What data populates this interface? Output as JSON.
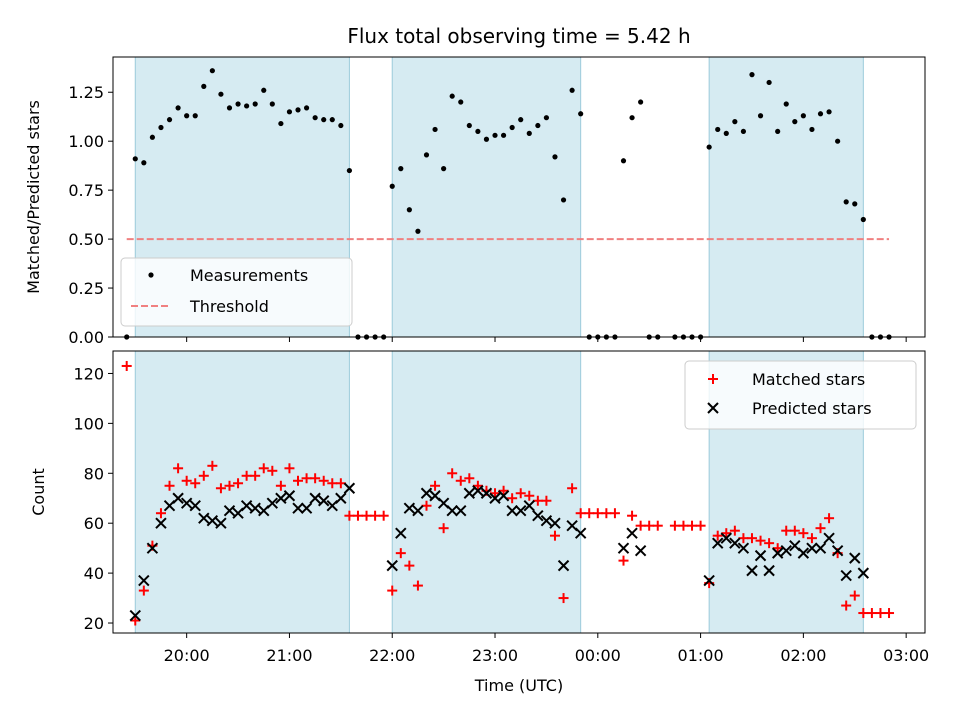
{
  "figure": {
    "title": "Flux total observing time = 5.42 h"
  },
  "chart_data": [
    {
      "type": "scatter",
      "ylabel": "Matched/Predicted stars",
      "xlabel": "",
      "xlim": [
        "19:17",
        "03:11"
      ],
      "ylim": [
        0,
        1.43
      ],
      "yticks": [
        "0.00",
        "0.25",
        "0.50",
        "0.75",
        "1.00",
        "1.25"
      ],
      "shaded_intervals": [
        [
          "19:30",
          "21:35"
        ],
        [
          "22:00",
          "23:50"
        ],
        [
          "01:05",
          "02:35"
        ]
      ],
      "threshold": {
        "value": 0.5,
        "x_range": [
          "19:25",
          "02:50"
        ],
        "color": "#f08080"
      },
      "legend_position": "lower-left",
      "legend": {
        "measurements": "Measurements",
        "threshold": "Threshold"
      },
      "series": [
        {
          "name": "Measurements",
          "color": "#000000",
          "points": [
            [
              "19:25",
              0.0
            ],
            [
              "19:30",
              0.91
            ],
            [
              "19:35",
              0.89
            ],
            [
              "19:40",
              1.02
            ],
            [
              "19:45",
              1.07
            ],
            [
              "19:50",
              1.11
            ],
            [
              "19:55",
              1.17
            ],
            [
              "20:00",
              1.13
            ],
            [
              "20:05",
              1.13
            ],
            [
              "20:10",
              1.28
            ],
            [
              "20:15",
              1.36
            ],
            [
              "20:20",
              1.24
            ],
            [
              "20:25",
              1.17
            ],
            [
              "20:30",
              1.19
            ],
            [
              "20:35",
              1.18
            ],
            [
              "20:40",
              1.19
            ],
            [
              "20:45",
              1.26
            ],
            [
              "20:50",
              1.19
            ],
            [
              "20:55",
              1.09
            ],
            [
              "21:00",
              1.15
            ],
            [
              "21:05",
              1.16
            ],
            [
              "21:10",
              1.17
            ],
            [
              "21:15",
              1.12
            ],
            [
              "21:20",
              1.11
            ],
            [
              "21:25",
              1.11
            ],
            [
              "21:30",
              1.08
            ],
            [
              "21:35",
              0.85
            ],
            [
              "21:40",
              0.0
            ],
            [
              "21:45",
              0.0
            ],
            [
              "21:50",
              0.0
            ],
            [
              "21:55",
              0.0
            ],
            [
              "22:00",
              0.77
            ],
            [
              "22:05",
              0.86
            ],
            [
              "22:10",
              0.65
            ],
            [
              "22:15",
              0.54
            ],
            [
              "22:20",
              0.93
            ],
            [
              "22:25",
              1.06
            ],
            [
              "22:30",
              0.86
            ],
            [
              "22:35",
              1.23
            ],
            [
              "22:40",
              1.2
            ],
            [
              "22:45",
              1.08
            ],
            [
              "22:50",
              1.05
            ],
            [
              "22:55",
              1.01
            ],
            [
              "23:00",
              1.03
            ],
            [
              "23:05",
              1.03
            ],
            [
              "23:10",
              1.07
            ],
            [
              "23:15",
              1.11
            ],
            [
              "23:20",
              1.04
            ],
            [
              "23:25",
              1.08
            ],
            [
              "23:30",
              1.12
            ],
            [
              "23:35",
              0.92
            ],
            [
              "23:40",
              0.7
            ],
            [
              "23:45",
              1.26
            ],
            [
              "23:50",
              1.14
            ],
            [
              "23:55",
              0.0
            ],
            [
              "00:00",
              0.0
            ],
            [
              "00:05",
              0.0
            ],
            [
              "00:10",
              0.0
            ],
            [
              "00:15",
              0.9
            ],
            [
              "00:20",
              1.12
            ],
            [
              "00:25",
              1.2
            ],
            [
              "00:30",
              0.0
            ],
            [
              "00:35",
              0.0
            ],
            [
              "00:45",
              0.0
            ],
            [
              "00:50",
              0.0
            ],
            [
              "00:55",
              0.0
            ],
            [
              "01:00",
              0.0
            ],
            [
              "01:05",
              0.97
            ],
            [
              "01:10",
              1.06
            ],
            [
              "01:15",
              1.04
            ],
            [
              "01:20",
              1.1
            ],
            [
              "01:25",
              1.05
            ],
            [
              "01:30",
              1.34
            ],
            [
              "01:35",
              1.13
            ],
            [
              "01:40",
              1.3
            ],
            [
              "01:45",
              1.05
            ],
            [
              "01:50",
              1.19
            ],
            [
              "01:55",
              1.1
            ],
            [
              "02:00",
              1.13
            ],
            [
              "02:05",
              1.06
            ],
            [
              "02:10",
              1.14
            ],
            [
              "02:15",
              1.15
            ],
            [
              "02:20",
              1.0
            ],
            [
              "02:25",
              0.69
            ],
            [
              "02:30",
              0.68
            ],
            [
              "02:35",
              0.6
            ],
            [
              "02:40",
              0.0
            ],
            [
              "02:45",
              0.0
            ],
            [
              "02:50",
              0.0
            ]
          ]
        }
      ]
    },
    {
      "type": "scatter",
      "ylabel": "Count",
      "xlabel": "Time (UTC)",
      "xlim": [
        "19:17",
        "03:11"
      ],
      "ylim": [
        16,
        129
      ],
      "yticks": [
        "20",
        "40",
        "60",
        "80",
        "100",
        "120"
      ],
      "xticks": [
        "20:00",
        "21:00",
        "22:00",
        "23:00",
        "00:00",
        "01:00",
        "02:00",
        "03:00"
      ],
      "shaded_intervals": [
        [
          "19:30",
          "21:35"
        ],
        [
          "22:00",
          "23:50"
        ],
        [
          "01:05",
          "02:35"
        ]
      ],
      "legend_position": "upper-right",
      "series": [
        {
          "name": "Matched stars",
          "color": "#ff0000",
          "marker": "plus",
          "points": [
            [
              "19:25",
              123
            ],
            [
              "19:30",
              21
            ],
            [
              "19:35",
              33
            ],
            [
              "19:40",
              51
            ],
            [
              "19:45",
              64
            ],
            [
              "19:50",
              75
            ],
            [
              "19:55",
              82
            ],
            [
              "20:00",
              77
            ],
            [
              "20:05",
              76
            ],
            [
              "20:10",
              79
            ],
            [
              "20:15",
              83
            ],
            [
              "20:20",
              74
            ],
            [
              "20:25",
              75
            ],
            [
              "20:30",
              76
            ],
            [
              "20:35",
              79
            ],
            [
              "20:40",
              79
            ],
            [
              "20:45",
              82
            ],
            [
              "20:50",
              81
            ],
            [
              "20:55",
              75
            ],
            [
              "21:00",
              82
            ],
            [
              "21:05",
              77
            ],
            [
              "21:10",
              78
            ],
            [
              "21:15",
              78
            ],
            [
              "21:20",
              77
            ],
            [
              "21:25",
              76
            ],
            [
              "21:30",
              76
            ],
            [
              "21:35",
              63
            ],
            [
              "21:40",
              63
            ],
            [
              "21:45",
              63
            ],
            [
              "21:50",
              63
            ],
            [
              "21:55",
              63
            ],
            [
              "22:00",
              33
            ],
            [
              "22:05",
              48
            ],
            [
              "22:10",
              43
            ],
            [
              "22:15",
              35
            ],
            [
              "22:20",
              67
            ],
            [
              "22:25",
              75
            ],
            [
              "22:30",
              58
            ],
            [
              "22:35",
              80
            ],
            [
              "22:40",
              77
            ],
            [
              "22:45",
              78
            ],
            [
              "22:50",
              75
            ],
            [
              "22:55",
              73
            ],
            [
              "23:00",
              72
            ],
            [
              "23:05",
              73
            ],
            [
              "23:10",
              70
            ],
            [
              "23:15",
              72
            ],
            [
              "23:20",
              71
            ],
            [
              "23:25",
              69
            ],
            [
              "23:30",
              69
            ],
            [
              "23:35",
              55
            ],
            [
              "23:40",
              30
            ],
            [
              "23:45",
              74
            ],
            [
              "23:50",
              64
            ],
            [
              "23:55",
              64
            ],
            [
              "00:00",
              64
            ],
            [
              "00:05",
              64
            ],
            [
              "00:10",
              64
            ],
            [
              "00:15",
              45
            ],
            [
              "00:20",
              63
            ],
            [
              "00:25",
              59
            ],
            [
              "00:30",
              59
            ],
            [
              "00:35",
              59
            ],
            [
              "00:45",
              59
            ],
            [
              "00:50",
              59
            ],
            [
              "00:55",
              59
            ],
            [
              "01:00",
              59
            ],
            [
              "01:05",
              36
            ],
            [
              "01:10",
              55
            ],
            [
              "01:15",
              56
            ],
            [
              "01:20",
              57
            ],
            [
              "01:25",
              54
            ],
            [
              "01:30",
              54
            ],
            [
              "01:35",
              53
            ],
            [
              "01:40",
              52
            ],
            [
              "01:45",
              50
            ],
            [
              "01:50",
              57
            ],
            [
              "01:55",
              57
            ],
            [
              "02:00",
              56
            ],
            [
              "02:05",
              54
            ],
            [
              "02:10",
              58
            ],
            [
              "02:15",
              62
            ],
            [
              "02:20",
              48
            ],
            [
              "02:25",
              27
            ],
            [
              "02:30",
              31
            ],
            [
              "02:35",
              24
            ],
            [
              "02:40",
              24
            ],
            [
              "02:45",
              24
            ],
            [
              "02:50",
              24
            ]
          ]
        },
        {
          "name": "Predicted stars",
          "color": "#000000",
          "marker": "x",
          "points": [
            [
              "19:30",
              23
            ],
            [
              "19:35",
              37
            ],
            [
              "19:40",
              50
            ],
            [
              "19:45",
              60
            ],
            [
              "19:50",
              67
            ],
            [
              "19:55",
              70
            ],
            [
              "20:00",
              68
            ],
            [
              "20:05",
              67
            ],
            [
              "20:10",
              62
            ],
            [
              "20:15",
              61
            ],
            [
              "20:20",
              60
            ],
            [
              "20:25",
              65
            ],
            [
              "20:30",
              64
            ],
            [
              "20:35",
              67
            ],
            [
              "20:40",
              66
            ],
            [
              "20:45",
              65
            ],
            [
              "20:50",
              68
            ],
            [
              "20:55",
              70
            ],
            [
              "21:00",
              71
            ],
            [
              "21:05",
              66
            ],
            [
              "21:10",
              66
            ],
            [
              "21:15",
              70
            ],
            [
              "21:20",
              69
            ],
            [
              "21:25",
              67
            ],
            [
              "21:30",
              70
            ],
            [
              "21:35",
              74
            ],
            [
              "22:00",
              43
            ],
            [
              "22:05",
              56
            ],
            [
              "22:10",
              66
            ],
            [
              "22:15",
              65
            ],
            [
              "22:20",
              72
            ],
            [
              "22:25",
              71
            ],
            [
              "22:30",
              68
            ],
            [
              "22:35",
              65
            ],
            [
              "22:40",
              65
            ],
            [
              "22:45",
              72
            ],
            [
              "22:50",
              73
            ],
            [
              "22:55",
              72
            ],
            [
              "23:00",
              70
            ],
            [
              "23:05",
              71
            ],
            [
              "23:10",
              65
            ],
            [
              "23:15",
              65
            ],
            [
              "23:20",
              67
            ],
            [
              "23:25",
              63
            ],
            [
              "23:30",
              61
            ],
            [
              "23:35",
              60
            ],
            [
              "23:40",
              43
            ],
            [
              "23:45",
              59
            ],
            [
              "23:50",
              56
            ],
            [
              "00:15",
              50
            ],
            [
              "00:20",
              56
            ],
            [
              "00:25",
              49
            ],
            [
              "01:05",
              37
            ],
            [
              "01:10",
              52
            ],
            [
              "01:15",
              54
            ],
            [
              "01:20",
              52
            ],
            [
              "01:25",
              50
            ],
            [
              "01:30",
              41
            ],
            [
              "01:35",
              47
            ],
            [
              "01:40",
              41
            ],
            [
              "01:45",
              48
            ],
            [
              "01:50",
              49
            ],
            [
              "01:55",
              51
            ],
            [
              "02:00",
              48
            ],
            [
              "02:05",
              50
            ],
            [
              "02:10",
              50
            ],
            [
              "02:15",
              54
            ],
            [
              "02:20",
              49
            ],
            [
              "02:25",
              39
            ],
            [
              "02:30",
              46
            ],
            [
              "02:35",
              40
            ]
          ]
        }
      ]
    }
  ]
}
